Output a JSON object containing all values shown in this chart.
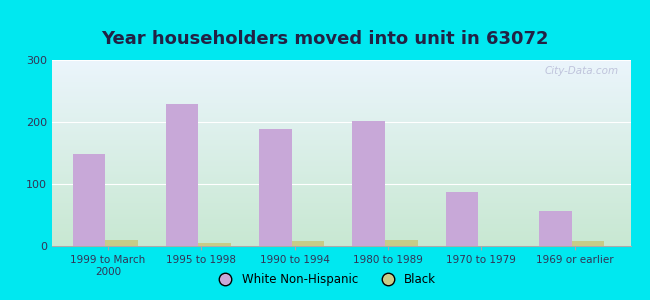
{
  "title": "Year householders moved into unit in 63072",
  "categories": [
    "1999 to March\n2000",
    "1995 to 1998",
    "1990 to 1994",
    "1980 to 1989",
    "1970 to 1979",
    "1969 or earlier"
  ],
  "white_values": [
    148,
    229,
    188,
    201,
    87,
    57
  ],
  "black_values": [
    10,
    5,
    8,
    9,
    0,
    8
  ],
  "white_color": "#c8a8d8",
  "black_color": "#c8cc88",
  "ylim": [
    0,
    300
  ],
  "yticks": [
    0,
    100,
    200,
    300
  ],
  "bg_outer": "#00e8f0",
  "bg_inner_top_left": "#c8e8d0",
  "bg_inner_top_right": "#e8f4f8",
  "bg_inner_bottom": "#d0ecd8",
  "title_fontsize": 13,
  "title_color": "#222244",
  "watermark": "City-Data.com",
  "bar_width": 0.35
}
